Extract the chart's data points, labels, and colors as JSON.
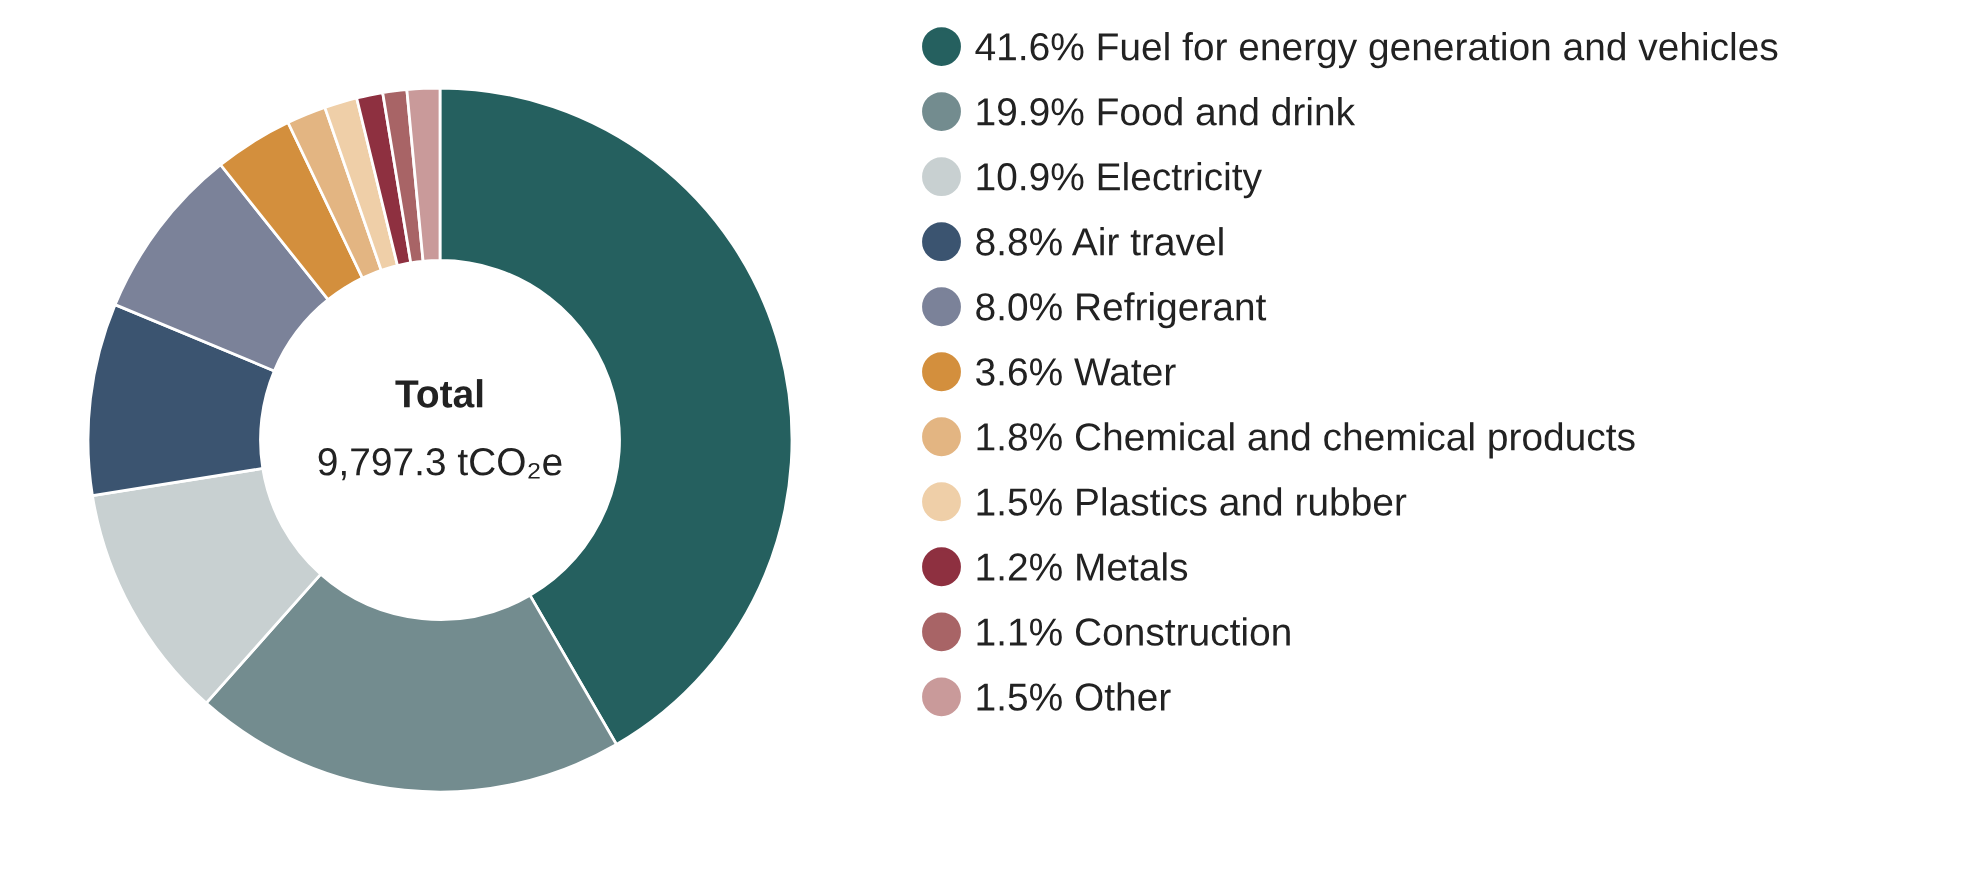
{
  "chart_data": {
    "type": "donut",
    "categories": [
      "Fuel for energy generation and vehicles",
      "Food and drink",
      "Electricity",
      "Air travel",
      "Refrigerant",
      "Water",
      "Chemical and chemical products",
      "Plastics and rubber",
      "Metals",
      "Construction",
      "Other"
    ],
    "values": [
      41.6,
      19.9,
      10.9,
      8.8,
      8.0,
      3.6,
      1.8,
      1.5,
      1.2,
      1.1,
      1.5
    ],
    "value_labels": [
      "41.6%",
      "19.9%",
      "10.9%",
      "8.8%",
      "8.0%",
      "3.6%",
      "1.8%",
      "1.5%",
      "1.2%",
      "1.1%",
      "1.5%"
    ],
    "colors": [
      "#25605f",
      "#738c8f",
      "#c8d0d1",
      "#3b5470",
      "#7b8299",
      "#d38f3d",
      "#e3b582",
      "#efcfa8",
      "#8e3040",
      "#a86466",
      "#c99a9a"
    ],
    "annotations": [
      "Total",
      "9,797.3 tCO₂e"
    ],
    "legend": "right"
  }
}
